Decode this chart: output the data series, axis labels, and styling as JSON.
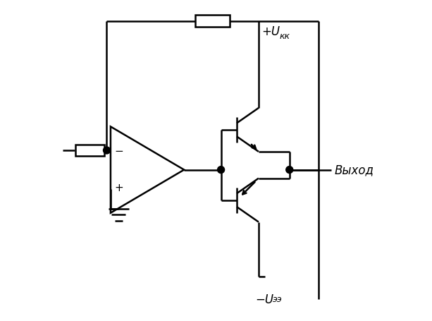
{
  "bg_color": "#ffffff",
  "line_color": "#000000",
  "lw": 1.8,
  "figsize": [
    6.13,
    4.56
  ],
  "dpi": 100,
  "label_output": "Выход",
  "label_Ukk": "+U",
  "label_Ukk_sub": "кк",
  "label_Uee": "−U",
  "label_Uee_sub": "ээ"
}
